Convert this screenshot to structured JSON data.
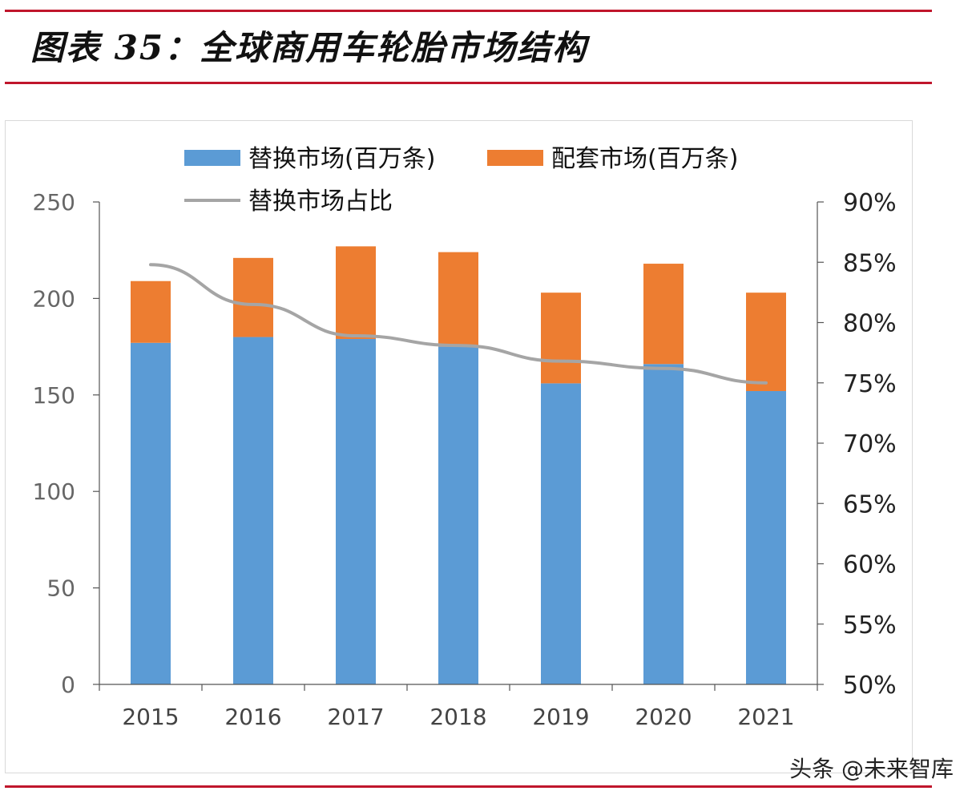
{
  "header": {
    "title": "图表 35：全球商用车轮胎市场结构"
  },
  "chart_data": {
    "type": "bar",
    "stacked": true,
    "categories": [
      "2015",
      "2016",
      "2017",
      "2018",
      "2019",
      "2020",
      "2021"
    ],
    "series": [
      {
        "name": "替换市场(百万条)",
        "type": "bar",
        "axis": "left",
        "color": "#5b9bd5",
        "values": [
          177,
          180,
          179,
          175,
          156,
          166,
          152
        ]
      },
      {
        "name": "配套市场(百万条)",
        "type": "bar",
        "axis": "left",
        "color": "#ed7d31",
        "values": [
          32,
          41,
          48,
          49,
          47,
          52,
          51
        ]
      },
      {
        "name": "替换市场占比",
        "type": "line",
        "axis": "right",
        "color": "#a5a5a5",
        "values": [
          0.848,
          0.815,
          0.789,
          0.781,
          0.768,
          0.762,
          0.75
        ]
      }
    ],
    "ylim_left": [
      0,
      250
    ],
    "yticks_left": [
      "0",
      "50",
      "100",
      "150",
      "200",
      "250"
    ],
    "ylim_right": [
      0.5,
      0.9
    ],
    "yticks_right": [
      "50%",
      "55%",
      "60%",
      "65%",
      "70%",
      "75%",
      "80%",
      "85%",
      "90%"
    ],
    "legend_position": "top",
    "grid": false
  },
  "watermark": "头条 @未来智库"
}
